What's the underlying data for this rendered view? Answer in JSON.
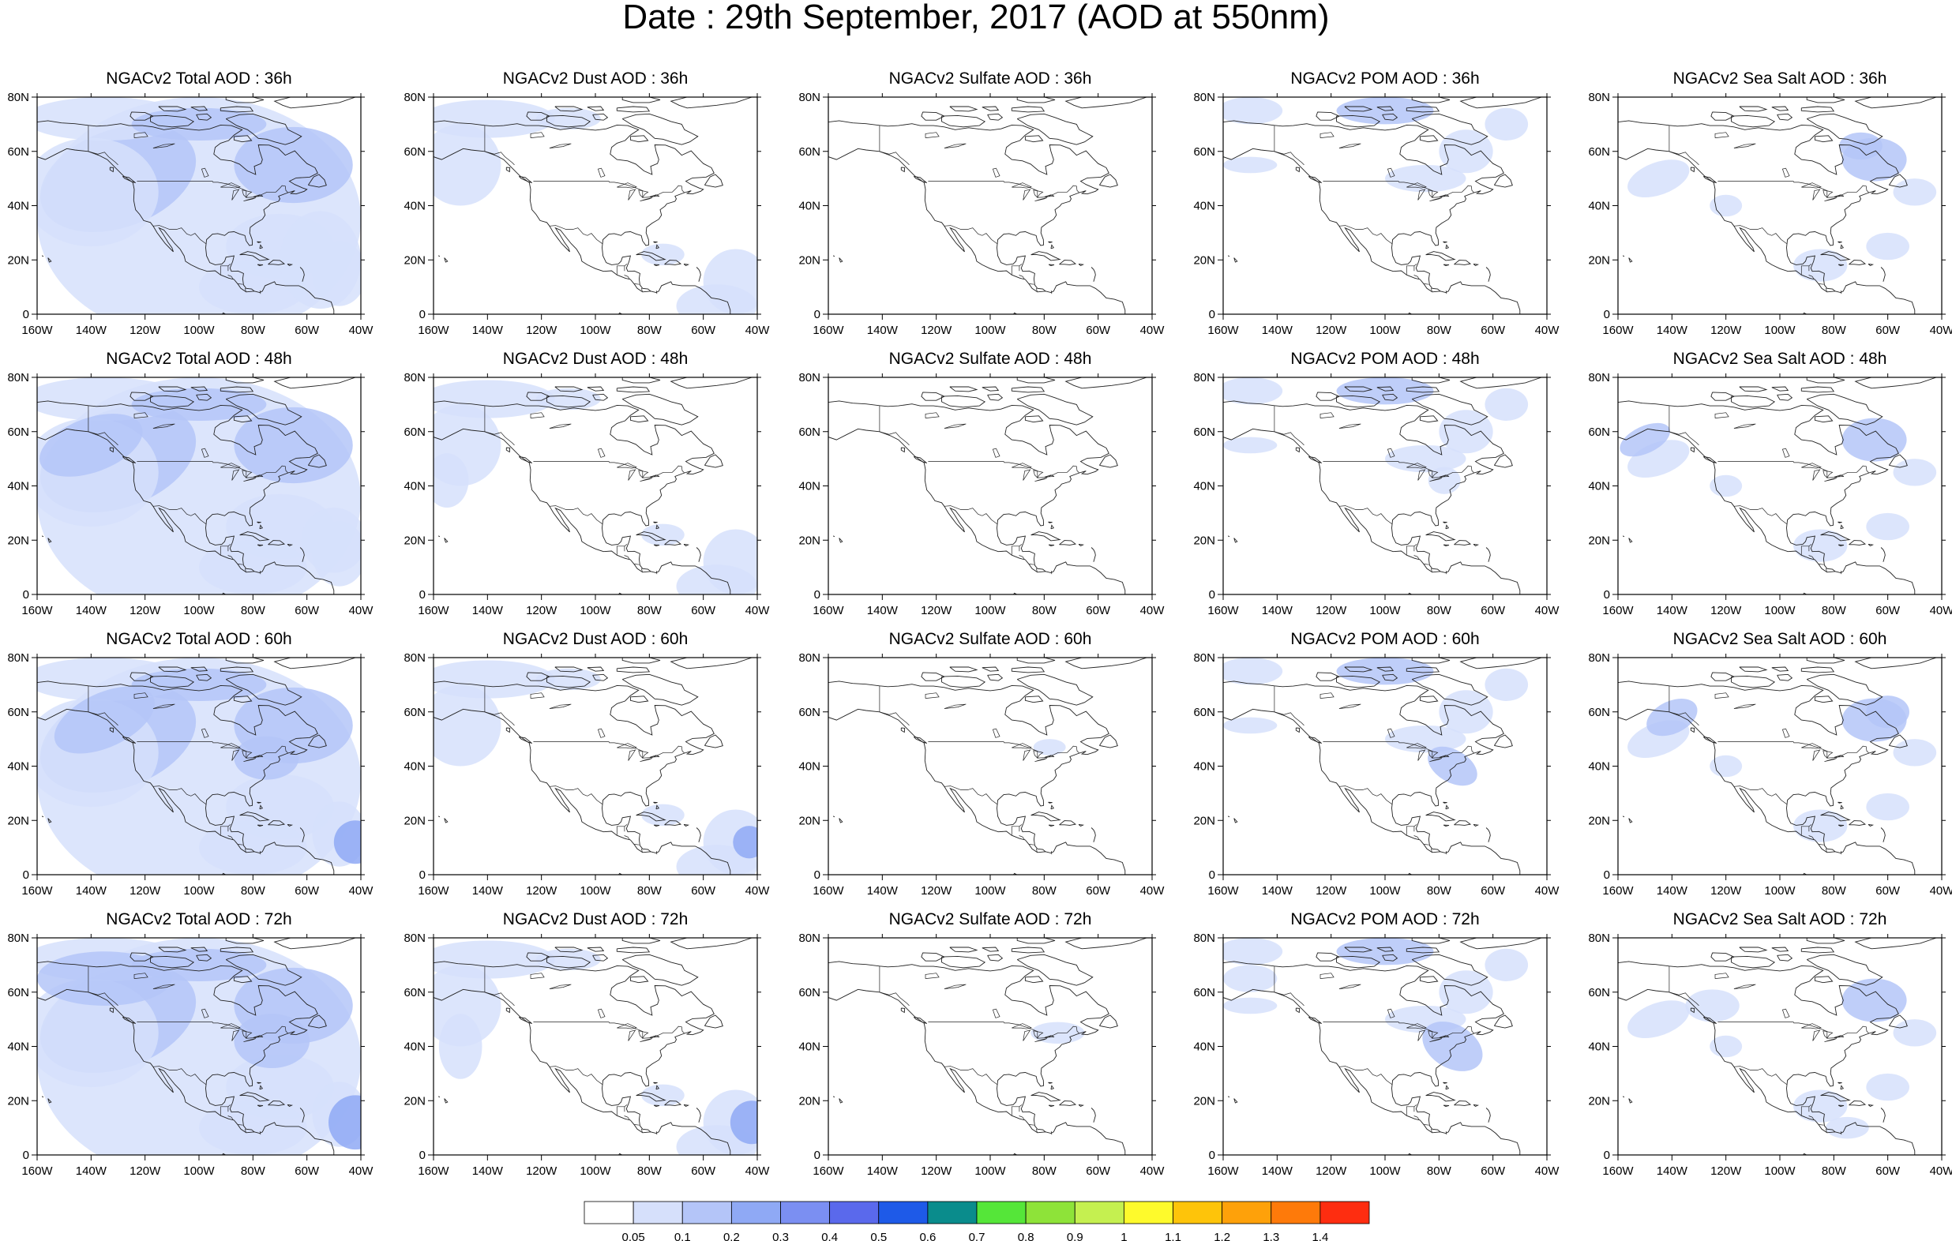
{
  "title": "Date : 29th September, 2017 (AOD at 550nm)",
  "colors": {
    "ocean": "#ffffff",
    "coast": "#222222",
    "levels": [
      "#ffffff",
      "#d6e0fb",
      "#b4c5f8",
      "#8fa9f5",
      "#7b8ff2",
      "#5a69ec",
      "#1e5ae8",
      "#0a8c8c",
      "#55e639",
      "#8ee339",
      "#c5f050",
      "#fefa2c",
      "#fec40a",
      "#fea10a",
      "#fe7a0a",
      "#fe2d10"
    ]
  },
  "colorbar_labels": [
    "0.05",
    "0.1",
    "0.2",
    "0.3",
    "0.4",
    "0.5",
    "0.6",
    "0.7",
    "0.8",
    "0.9",
    "1",
    "1.1",
    "1.2",
    "1.3",
    "1.4"
  ],
  "x_ticks": [
    "160W",
    "140W",
    "120W",
    "100W",
    "80W",
    "60W",
    "40W"
  ],
  "y_ticks": [
    "80N",
    "60N",
    "40N",
    "20N",
    "0"
  ],
  "rows": [
    {
      "hour": "36h",
      "panels": [
        {
          "title": "NGACv2 Total AOD : 36h"
        },
        {
          "title": "NGACv2 Dust AOD : 36h"
        },
        {
          "title": "NGACv2 Sulfate AOD : 36h"
        },
        {
          "title": "NGACv2 POM AOD : 36h"
        },
        {
          "title": "NGACv2 Sea Salt AOD : 36h"
        }
      ]
    },
    {
      "hour": "48h",
      "panels": [
        {
          "title": "NGACv2 Total AOD : 48h"
        },
        {
          "title": "NGACv2 Dust AOD : 48h"
        },
        {
          "title": "NGACv2 Sulfate AOD : 48h"
        },
        {
          "title": "NGACv2 POM AOD : 48h"
        },
        {
          "title": "NGACv2 Sea Salt AOD : 48h"
        }
      ]
    },
    {
      "hour": "60h",
      "panels": [
        {
          "title": "NGACv2 Total AOD : 60h"
        },
        {
          "title": "NGACv2 Dust AOD : 60h"
        },
        {
          "title": "NGACv2 Sulfate AOD : 60h"
        },
        {
          "title": "NGACv2 POM AOD : 60h"
        },
        {
          "title": "NGACv2 Sea Salt AOD : 60h"
        }
      ]
    },
    {
      "hour": "72h",
      "panels": [
        {
          "title": "NGACv2 Total AOD : 72h"
        },
        {
          "title": "NGACv2 Dust AOD : 72h"
        },
        {
          "title": "NGACv2 Sulfate AOD : 72h"
        },
        {
          "title": "NGACv2 POM AOD : 72h"
        },
        {
          "title": "NGACv2 Sea Salt  AOD : 72h"
        }
      ]
    }
  ]
}
